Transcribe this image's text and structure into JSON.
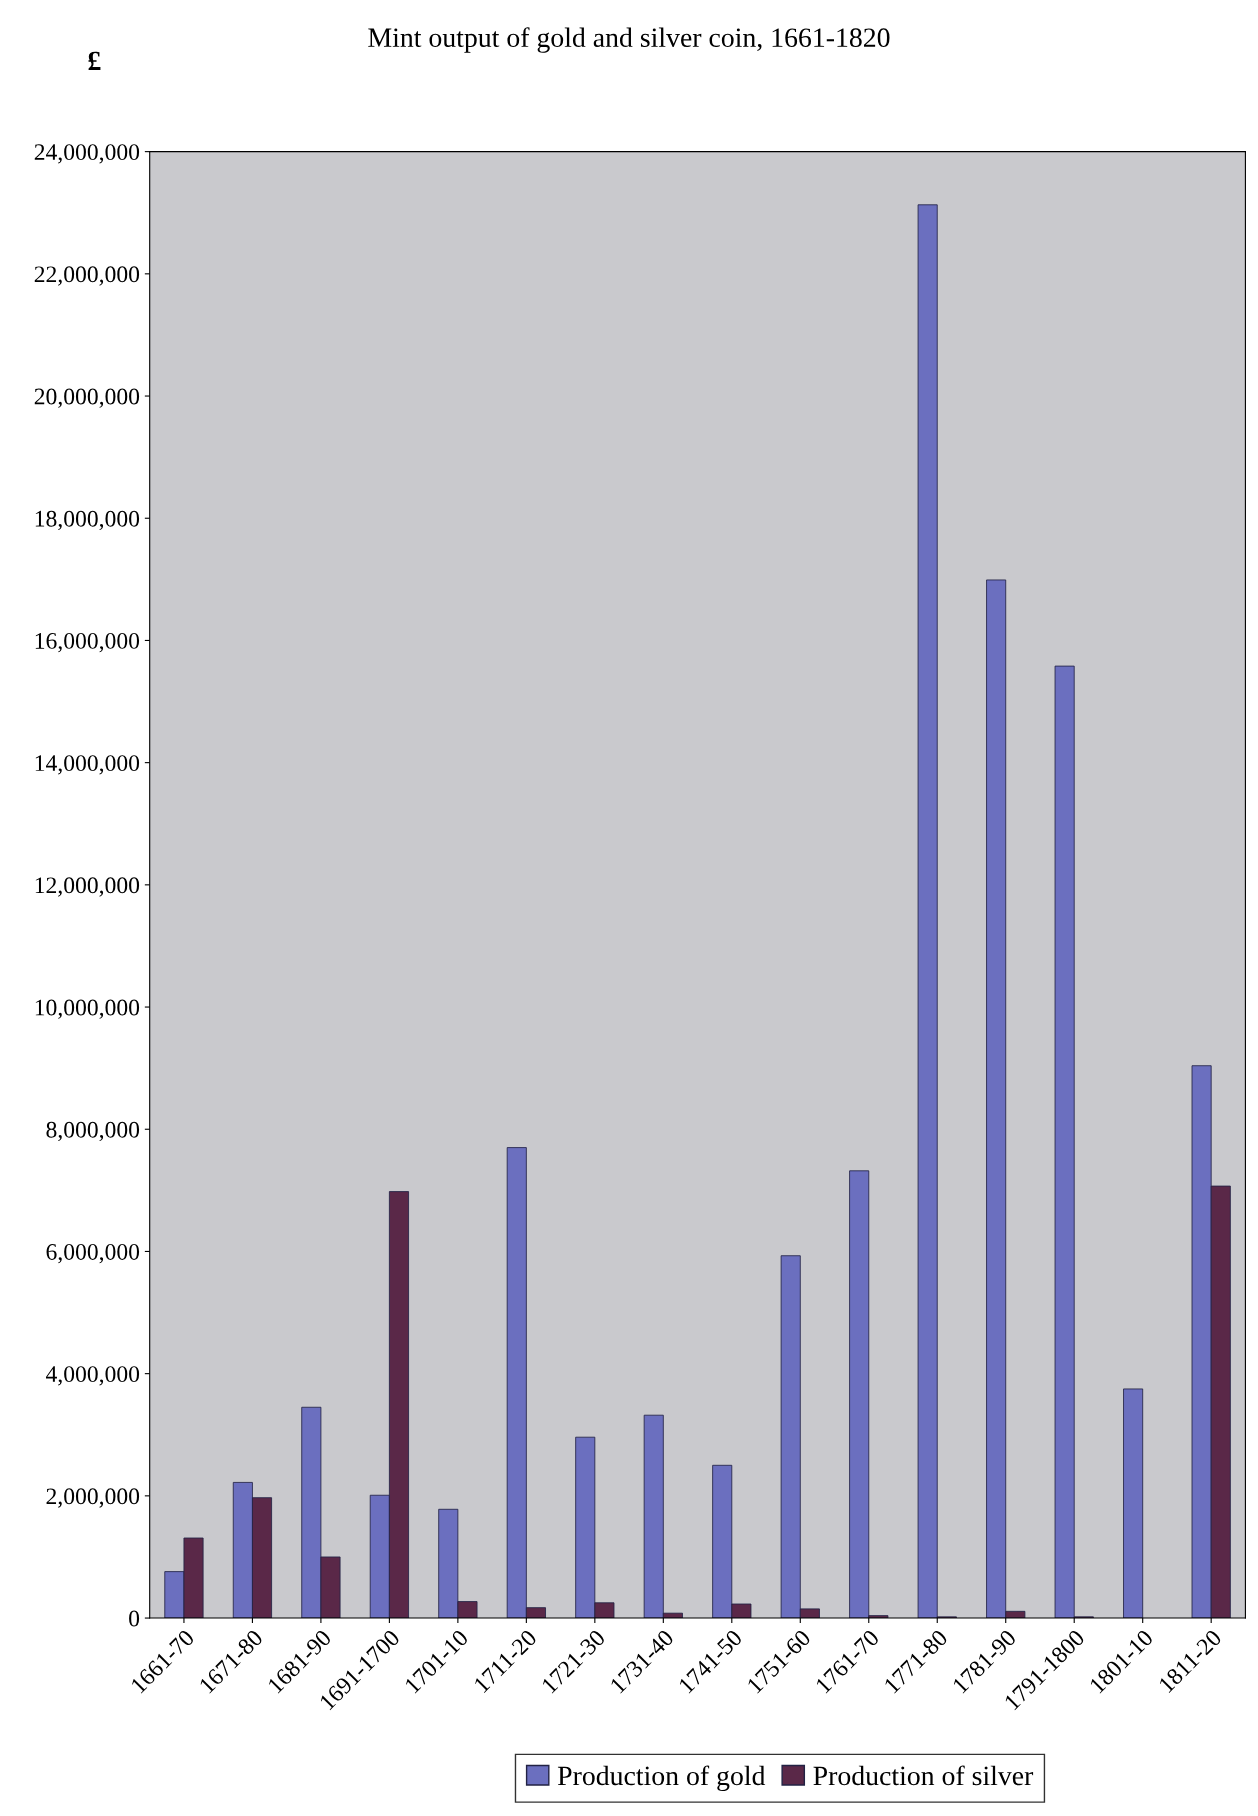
{
  "chart_data": {
    "type": "bar",
    "title": "Mint output of gold and silver coin, 1661-1820",
    "ylabel": "£",
    "categories": [
      "1661-70",
      "1671-80",
      "1681-90",
      "1691-1700",
      "1701-10",
      "1711-20",
      "1721-30",
      "1731-40",
      "1741-50",
      "1751-60",
      "1761-70",
      "1771-80",
      "1781-90",
      "1791-1800",
      "1801-10",
      "1811-20"
    ],
    "series": [
      {
        "name": "Production of gold",
        "color": "#6b6fbf",
        "values": [
          760000,
          2220000,
          3450000,
          2010000,
          1780000,
          7700000,
          2960000,
          3320000,
          2500000,
          5930000,
          7320000,
          23130000,
          16990000,
          15580000,
          3750000,
          9040000
        ]
      },
      {
        "name": "Production of silver",
        "color": "#5a2848",
        "values": [
          1310000,
          1970000,
          1000000,
          6980000,
          270000,
          170000,
          250000,
          80000,
          230000,
          150000,
          40000,
          20000,
          110000,
          20000,
          null,
          7070000
        ]
      }
    ],
    "ylim": [
      0,
      24000000
    ],
    "yticks": [
      {
        "value": 0,
        "label": "0"
      },
      {
        "value": 2000000,
        "label": "2,000,000"
      },
      {
        "value": 4000000,
        "label": "4,000,000"
      },
      {
        "value": 6000000,
        "label": "6,000,000"
      },
      {
        "value": 8000000,
        "label": "8,000,000"
      },
      {
        "value": 10000000,
        "label": "10,000,000"
      },
      {
        "value": 12000000,
        "label": "12,000,000"
      },
      {
        "value": 14000000,
        "label": "14,000,000"
      },
      {
        "value": 16000000,
        "label": "16,000,000"
      },
      {
        "value": 18000000,
        "label": "18,000,000"
      },
      {
        "value": 20000000,
        "label": "20,000,000"
      },
      {
        "value": 22000000,
        "label": "22,000,000"
      },
      {
        "value": 24000000,
        "label": "24,000,000"
      }
    ],
    "grid": false,
    "legend": "bottom"
  }
}
